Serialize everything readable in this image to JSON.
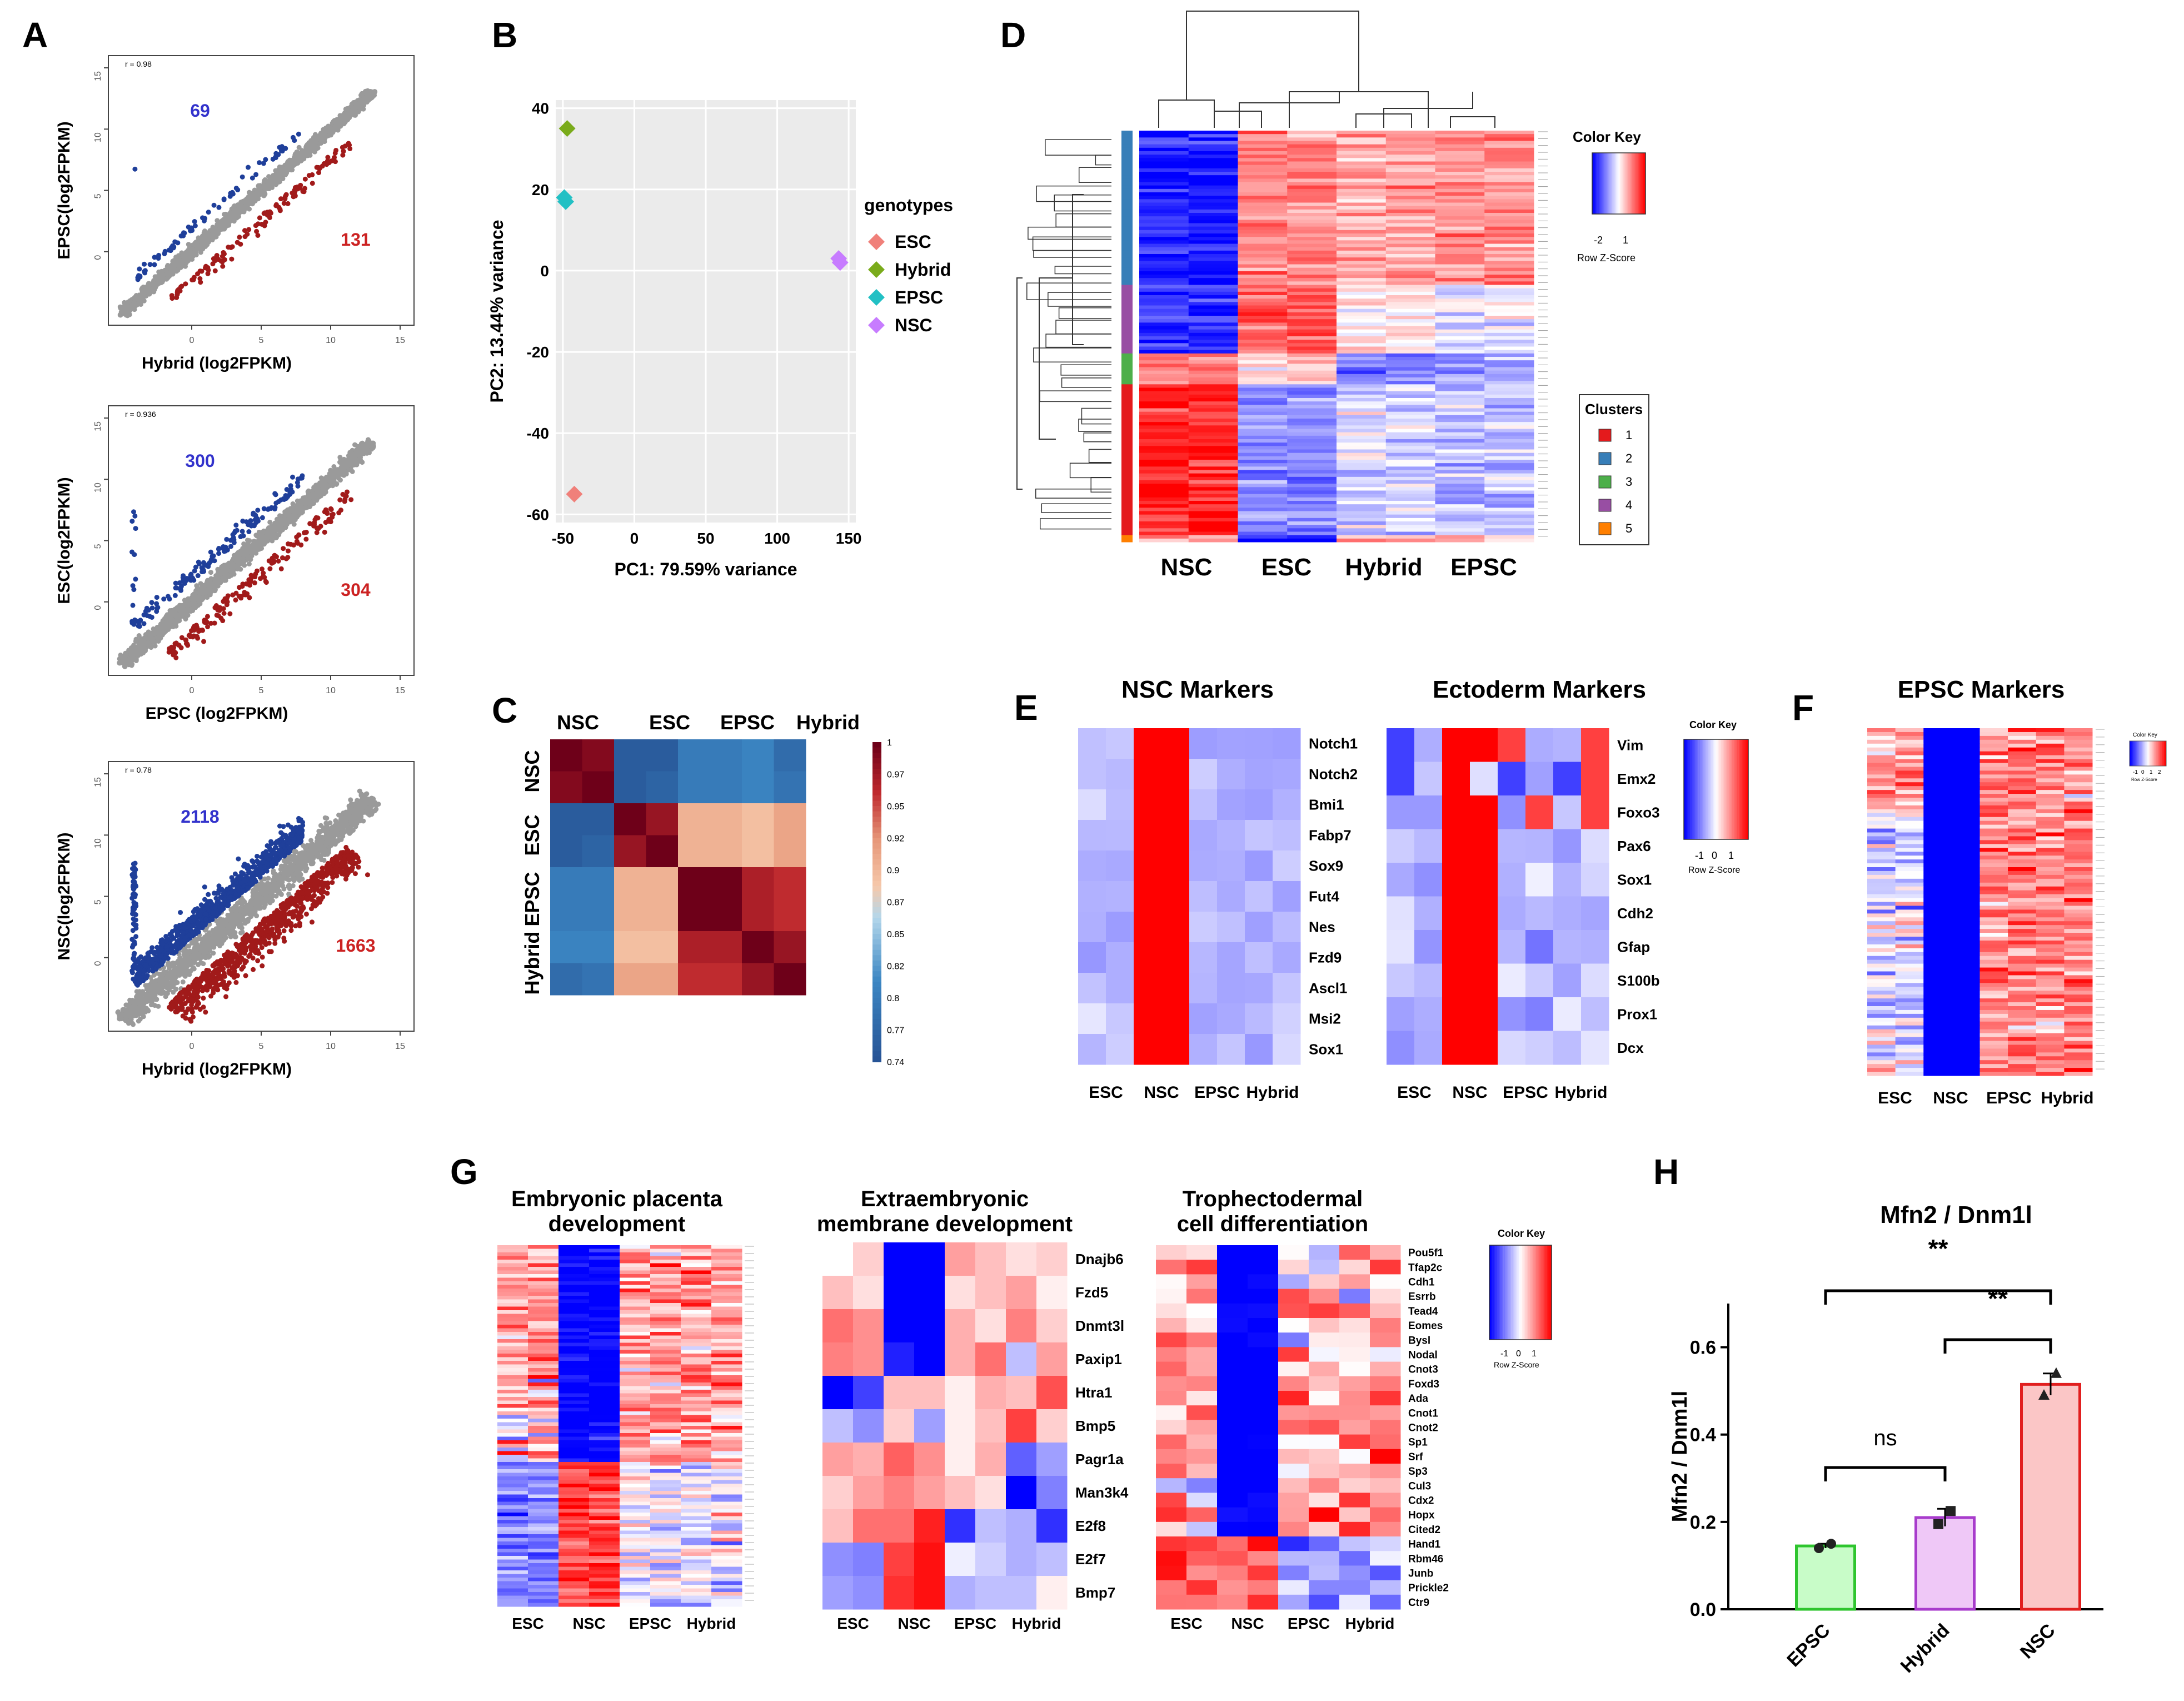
{
  "figure": {
    "panel_letters": [
      "A",
      "B",
      "C",
      "D",
      "E",
      "F",
      "G",
      "H"
    ]
  },
  "chart_data": [
    {
      "panel": "A",
      "type": "scatter",
      "subplots": [
        {
          "r_label": "r = 0.98",
          "xlabel": "Hybrid (log2FPKM)",
          "ylabel": "EPSC(log2FPKM)",
          "up_count": "69",
          "down_count": "131"
        },
        {
          "r_label": "r = 0.936",
          "xlabel": "EPSC (log2FPKM)",
          "ylabel": "ESC(log2FPKM)",
          "up_count": "300",
          "down_count": "304"
        },
        {
          "r_label": "r = 0.78",
          "xlabel": "Hybrid (log2FPKM)",
          "ylabel": "NSC(log2FPKM)",
          "up_count": "2118",
          "down_count": "1663"
        }
      ],
      "x_ticks": [
        "0",
        "5",
        "10",
        "15"
      ],
      "y_ticks": [
        "0",
        "5",
        "10",
        "15"
      ],
      "colors": {
        "up": "#1f3f9a",
        "down": "#a11a1a",
        "unchanged": "#9a9a9a"
      }
    },
    {
      "panel": "B",
      "type": "scatter",
      "title": "",
      "xlabel": "PC1: 79.59% variance",
      "ylabel": "PC2: 13.44% variance",
      "xlim": [
        -55,
        155
      ],
      "ylim": [
        -62,
        42
      ],
      "x_ticks": [
        "-50",
        "0",
        "50",
        "100",
        "150"
      ],
      "y_ticks": [
        "-60",
        "-40",
        "-20",
        "0",
        "20",
        "40"
      ],
      "legend_title": "genotypes",
      "series": [
        {
          "name": "ESC",
          "color": "#f0807a",
          "points": [
            [
              -42,
              -55
            ]
          ]
        },
        {
          "name": "Hybrid",
          "color": "#7aab1b",
          "points": [
            [
              -47,
              35
            ]
          ]
        },
        {
          "name": "EPSC",
          "color": "#22c0c4",
          "points": [
            [
              -49,
              18
            ],
            [
              -48,
              17
            ]
          ]
        },
        {
          "name": "NSC",
          "color": "#c77cff",
          "points": [
            [
              143,
              3
            ],
            [
              144,
              2
            ]
          ]
        }
      ]
    },
    {
      "panel": "C",
      "type": "heatmap",
      "col_groups": [
        "NSC",
        "ESC",
        "EPSC",
        "Hybrid"
      ],
      "row_groups": [
        "NSC",
        "ESC",
        "EPSC",
        "Hybrid"
      ],
      "colorbar_ticks": [
        "1",
        "0.97",
        "0.95",
        "0.92",
        "0.9",
        "0.87",
        "0.85",
        "0.82",
        "0.8",
        "0.77",
        "0.74"
      ],
      "range": [
        0.74,
        1
      ],
      "matrix": [
        [
          1.0,
          0.99,
          0.75,
          0.75,
          0.79,
          0.79,
          0.8,
          0.77
        ],
        [
          0.99,
          1.0,
          0.75,
          0.76,
          0.79,
          0.79,
          0.8,
          0.78
        ],
        [
          0.75,
          0.75,
          1.0,
          0.98,
          0.9,
          0.9,
          0.89,
          0.91
        ],
        [
          0.75,
          0.76,
          0.98,
          1.0,
          0.9,
          0.9,
          0.89,
          0.91
        ],
        [
          0.79,
          0.79,
          0.9,
          0.9,
          1.0,
          1.0,
          0.97,
          0.96
        ],
        [
          0.79,
          0.79,
          0.9,
          0.9,
          1.0,
          1.0,
          0.97,
          0.96
        ],
        [
          0.8,
          0.8,
          0.89,
          0.89,
          0.97,
          0.97,
          1.0,
          0.98
        ],
        [
          0.77,
          0.78,
          0.91,
          0.91,
          0.96,
          0.96,
          0.98,
          1.0
        ]
      ]
    },
    {
      "panel": "D",
      "type": "heatmap",
      "col_groups": [
        "NSC",
        "ESC",
        "Hybrid",
        "EPSC"
      ],
      "legend_title": "Color Key",
      "legend_ticks": [
        "-2",
        "1"
      ],
      "legend_caption": "Row Z-Score",
      "clusters_title": "Clusters",
      "clusters": [
        {
          "label": "1",
          "color": "#e41a1c"
        },
        {
          "label": "2",
          "color": "#377eb8"
        },
        {
          "label": "3",
          "color": "#4daf4a"
        },
        {
          "label": "4",
          "color": "#984ea3"
        },
        {
          "label": "5",
          "color": "#ff7f00"
        }
      ],
      "cluster_pattern": [
        {
          "cluster": "2",
          "nsc": -1.4,
          "esc": 0.7,
          "hybrid": 0.6,
          "epsc": 0.7
        },
        {
          "cluster": "4",
          "nsc": -1.3,
          "esc": 1.1,
          "hybrid": 0.1,
          "epsc": -0.1
        },
        {
          "cluster": "3",
          "nsc": 0.9,
          "esc": 0.3,
          "hybrid": -0.8,
          "epsc": -0.6
        },
        {
          "cluster": "1",
          "nsc": 1.4,
          "esc": -0.7,
          "hybrid": -0.2,
          "epsc": -0.4
        },
        {
          "cluster": "5",
          "nsc": 0.6,
          "esc": -1.3,
          "hybrid": 0.5,
          "epsc": 0.4
        }
      ]
    },
    {
      "panel": "E",
      "type": "heatmap",
      "titles": [
        "NSC Markers",
        "Ectoderm Markers"
      ],
      "col_labels": [
        "ESC",
        "NSC",
        "EPSC",
        "Hybrid"
      ],
      "nsc_genes": [
        "Notch1",
        "Notch2",
        "Bmi1",
        "Fabp7",
        "Sox9",
        "Fut4",
        "Nes",
        "Fzd9",
        "Ascl1",
        "Msi2",
        "Sox1"
      ],
      "ecto_genes": [
        "Vim",
        "Emx2",
        "Foxo3",
        "Pax6",
        "Sox1",
        "Cdh2",
        "Gfap",
        "S100b",
        "Prox1",
        "Dcx"
      ],
      "legend_title": "Color Key",
      "legend_ticks": [
        "-1",
        "0",
        "1"
      ],
      "legend_caption": "Row Z-Score"
    },
    {
      "panel": "F",
      "type": "heatmap",
      "title": "EPSC Markers",
      "col_labels": [
        "ESC",
        "NSC",
        "EPSC",
        "Hybrid"
      ],
      "legend_title": "Color Key",
      "legend_ticks": [
        "-1",
        "0",
        "1",
        "2"
      ],
      "legend_caption": "Row Z-Score"
    },
    {
      "panel": "G",
      "type": "heatmap",
      "titles": [
        [
          "Embryonic placenta",
          "development"
        ],
        [
          "Extraembryonic",
          "membrane development"
        ],
        [
          "Trophectodermal",
          "cell differentiation"
        ]
      ],
      "col_labels": [
        "ESC",
        "NSC",
        "EPSC",
        "Hybrid"
      ],
      "membrane_genes": [
        "Dnajb6",
        "Fzd5",
        "Dnmt3l",
        "Paxip1",
        "Htra1",
        "Bmp5",
        "Pagr1a",
        "Man3k4",
        "E2f8",
        "E2f7",
        "Bmp7"
      ],
      "tropho_genes": [
        "Pou5f1",
        "Tfap2c",
        "Cdh1",
        "Esrrb",
        "Tead4",
        "Eomes",
        "Bysl",
        "Nodal",
        "Cnot3",
        "Foxd3",
        "Ada",
        "Cnot1",
        "Cnot2",
        "Sp1",
        "Srf",
        "Sp3",
        "Cul3",
        "Cdx2",
        "Hopx",
        "Cited2",
        "Hand1",
        "Rbm46",
        "Junb",
        "Prickle2",
        "Ctr9"
      ],
      "legend_title": "Color Key",
      "legend_ticks": [
        "-1",
        "0",
        "1"
      ],
      "legend_caption": "Row Z-Score"
    },
    {
      "panel": "H",
      "type": "bar",
      "title": "Mfn2 / Dnm1l",
      "ylabel": "Mfn2 / Dnm1l",
      "categories": [
        "EPSC",
        "Hybrid",
        "NSC"
      ],
      "values": [
        0.145,
        0.21,
        0.515
      ],
      "errors": [
        0.005,
        0.02,
        0.025
      ],
      "points": [
        [
          0.14,
          0.15
        ],
        [
          0.195,
          0.225
        ],
        [
          0.49,
          0.54
        ]
      ],
      "ylim": [
        0,
        0.7
      ],
      "y_ticks": [
        "0.0",
        "0.2",
        "0.4",
        "0.6"
      ],
      "fill_colors": [
        "#c8fcc8",
        "#efc8f7",
        "#fbc6c6"
      ],
      "edge_colors": [
        "#2ec52e",
        "#a83ccc",
        "#e11f1f"
      ],
      "significance": [
        {
          "from": "EPSC",
          "to": "NSC",
          "label": "**"
        },
        {
          "from": "Hybrid",
          "to": "NSC",
          "label": "**"
        },
        {
          "from": "EPSC",
          "to": "Hybrid",
          "label": "ns"
        }
      ]
    }
  ]
}
